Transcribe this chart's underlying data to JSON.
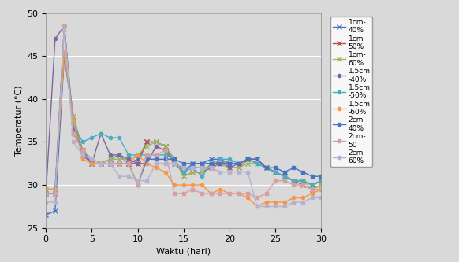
{
  "xlabel": "Waktu (hari)",
  "ylabel": "Temperatur (°C)",
  "xlim": [
    0,
    30
  ],
  "ylim": [
    25,
    50
  ],
  "yticks": [
    25,
    30,
    35,
    40,
    45,
    50
  ],
  "xticks": [
    0,
    5,
    10,
    15,
    20,
    25,
    30
  ],
  "bg_color": "#D9D9D9",
  "series": [
    {
      "label": "1cm-\n40%",
      "color": "#4472C4",
      "marker": "x",
      "markersize": 4,
      "linewidth": 1.0,
      "x": [
        0,
        1,
        2,
        3,
        4,
        5,
        6,
        7,
        8,
        9,
        10,
        11,
        12,
        13,
        14,
        15,
        16,
        17,
        18,
        19,
        20,
        21,
        22,
        23,
        24,
        25,
        26,
        27,
        28,
        29,
        30
      ],
      "y": [
        26.5,
        27.0,
        45.0,
        37.5,
        33.5,
        32.5,
        32.5,
        33.0,
        33.5,
        32.5,
        33.0,
        35.0,
        35.0,
        34.5,
        32.5,
        31.5,
        32.5,
        32.5,
        33.0,
        33.0,
        32.5,
        32.5,
        33.0,
        33.0,
        32.0,
        31.5,
        31.0,
        30.5,
        30.5,
        30.0,
        30.5
      ]
    },
    {
      "label": "1cm-\n50%",
      "color": "#C0504D",
      "marker": "x",
      "markersize": 4,
      "linewidth": 1.0,
      "x": [
        0,
        1,
        2,
        3,
        4,
        5,
        6,
        7,
        8,
        9,
        10,
        11,
        12,
        13,
        14,
        15,
        16,
        17,
        18,
        19,
        20,
        21,
        22,
        23,
        24,
        25,
        26,
        27,
        28,
        29,
        30
      ],
      "y": [
        29.0,
        29.0,
        45.5,
        38.0,
        34.0,
        32.5,
        32.5,
        32.5,
        32.5,
        32.5,
        32.5,
        35.0,
        35.0,
        34.5,
        33.0,
        31.0,
        31.5,
        31.5,
        32.0,
        32.5,
        32.0,
        32.0,
        33.0,
        33.0,
        32.0,
        31.5,
        31.0,
        30.5,
        30.0,
        29.5,
        30.0
      ]
    },
    {
      "label": "1cm-\n60%",
      "color": "#9BBB59",
      "marker": "x",
      "markersize": 4,
      "linewidth": 1.0,
      "x": [
        0,
        1,
        2,
        3,
        4,
        5,
        6,
        7,
        8,
        9,
        10,
        11,
        12,
        13,
        14,
        15,
        16,
        17,
        18,
        19,
        20,
        21,
        22,
        23,
        24,
        25,
        26,
        27,
        28,
        29,
        30
      ],
      "y": [
        29.5,
        29.5,
        45.5,
        38.0,
        34.0,
        32.5,
        32.5,
        33.0,
        33.0,
        33.0,
        33.5,
        34.5,
        35.0,
        34.5,
        33.0,
        31.0,
        31.5,
        31.5,
        32.5,
        32.5,
        32.0,
        32.0,
        32.5,
        32.5,
        32.0,
        31.5,
        31.0,
        30.5,
        30.5,
        29.5,
        30.0
      ]
    },
    {
      "label": "1,5cm\n-40%",
      "color": "#8064A2",
      "marker": "o",
      "markersize": 3,
      "linewidth": 1.0,
      "x": [
        0,
        1,
        2,
        3,
        4,
        5,
        6,
        7,
        8,
        9,
        10,
        11,
        12,
        13,
        14,
        15,
        16,
        17,
        18,
        19,
        20,
        21,
        22,
        23,
        24,
        25,
        26,
        27,
        28,
        29,
        30
      ],
      "y": [
        29.0,
        47.0,
        48.5,
        36.5,
        34.0,
        32.5,
        36.0,
        33.5,
        33.5,
        33.0,
        32.5,
        32.5,
        34.5,
        34.0,
        32.5,
        32.0,
        32.0,
        32.0,
        32.0,
        33.0,
        32.0,
        32.5,
        33.0,
        32.5,
        32.0,
        31.5,
        31.0,
        30.5,
        30.5,
        30.0,
        30.5
      ]
    },
    {
      "label": "1,5cm\n-50%",
      "color": "#4BACC6",
      "marker": "o",
      "markersize": 3,
      "linewidth": 1.0,
      "x": [
        0,
        1,
        2,
        3,
        4,
        5,
        6,
        7,
        8,
        9,
        10,
        11,
        12,
        13,
        14,
        15,
        16,
        17,
        18,
        19,
        20,
        21,
        22,
        23,
        24,
        25,
        26,
        27,
        28,
        29,
        30
      ],
      "y": [
        29.5,
        29.5,
        48.5,
        37.0,
        35.0,
        35.5,
        36.0,
        35.5,
        35.5,
        33.5,
        33.5,
        33.5,
        33.5,
        33.5,
        33.0,
        31.5,
        32.0,
        31.0,
        32.5,
        33.0,
        33.0,
        32.5,
        33.0,
        32.5,
        32.0,
        31.5,
        31.0,
        30.5,
        30.5,
        30.0,
        30.5
      ]
    },
    {
      "label": "1,5cm\n-60%",
      "color": "#F79646",
      "marker": "o",
      "markersize": 3,
      "linewidth": 1.0,
      "x": [
        0,
        1,
        2,
        3,
        4,
        5,
        6,
        7,
        8,
        9,
        10,
        11,
        12,
        13,
        14,
        15,
        16,
        17,
        18,
        19,
        20,
        21,
        22,
        23,
        24,
        25,
        26,
        27,
        28,
        29,
        30
      ],
      "y": [
        29.5,
        29.5,
        45.5,
        37.5,
        33.0,
        32.5,
        32.5,
        32.5,
        32.5,
        32.5,
        33.5,
        32.5,
        32.0,
        31.5,
        30.0,
        30.0,
        30.0,
        30.0,
        29.0,
        29.5,
        29.0,
        29.0,
        28.5,
        27.5,
        28.0,
        28.0,
        28.0,
        28.5,
        28.5,
        29.0,
        29.5
      ]
    },
    {
      "label": "2cm-\n40%",
      "color": "#4472C4",
      "marker": "s",
      "markersize": 3,
      "linewidth": 1.0,
      "x": [
        0,
        1,
        2,
        3,
        4,
        5,
        6,
        7,
        8,
        9,
        10,
        11,
        12,
        13,
        14,
        15,
        16,
        17,
        18,
        19,
        20,
        21,
        22,
        23,
        24,
        25,
        26,
        27,
        28,
        29,
        30
      ],
      "y": [
        29.0,
        29.0,
        48.5,
        36.0,
        34.0,
        33.0,
        32.5,
        32.5,
        32.5,
        32.5,
        30.0,
        33.0,
        33.0,
        33.0,
        33.0,
        32.5,
        32.5,
        32.5,
        32.5,
        32.5,
        32.5,
        32.5,
        33.0,
        33.0,
        32.0,
        32.0,
        31.5,
        32.0,
        31.5,
        31.0,
        31.0
      ]
    },
    {
      "label": "2cm-\n50",
      "color": "#D4A0A0",
      "marker": "s",
      "markersize": 3,
      "linewidth": 1.0,
      "x": [
        0,
        1,
        2,
        3,
        4,
        5,
        6,
        7,
        8,
        9,
        10,
        11,
        12,
        13,
        14,
        15,
        16,
        17,
        18,
        19,
        20,
        21,
        22,
        23,
        24,
        25,
        26,
        27,
        28,
        29,
        30
      ],
      "y": [
        29.0,
        29.0,
        48.5,
        36.0,
        34.0,
        33.0,
        32.5,
        32.5,
        32.5,
        32.5,
        30.0,
        33.5,
        33.5,
        34.0,
        29.0,
        29.0,
        29.5,
        29.0,
        29.0,
        29.0,
        29.0,
        29.0,
        29.0,
        28.5,
        29.0,
        30.5,
        30.5,
        30.0,
        30.0,
        29.5,
        29.5
      ]
    },
    {
      "label": "2cm-\n60%",
      "color": "#B8B0D0",
      "marker": "s",
      "markersize": 3,
      "linewidth": 1.0,
      "x": [
        0,
        1,
        2,
        3,
        4,
        5,
        6,
        7,
        8,
        9,
        10,
        11,
        12,
        13,
        14,
        15,
        16,
        17,
        18,
        19,
        20,
        21,
        22,
        23,
        24,
        25,
        26,
        27,
        28,
        29,
        30
      ],
      "y": [
        28.0,
        28.0,
        48.0,
        35.0,
        33.5,
        33.0,
        32.5,
        32.5,
        31.0,
        31.0,
        30.5,
        30.5,
        32.5,
        32.5,
        32.5,
        32.0,
        32.0,
        32.0,
        32.0,
        31.5,
        31.5,
        31.5,
        31.5,
        27.5,
        27.5,
        27.5,
        27.5,
        28.0,
        28.0,
        28.5,
        28.5
      ]
    }
  ]
}
